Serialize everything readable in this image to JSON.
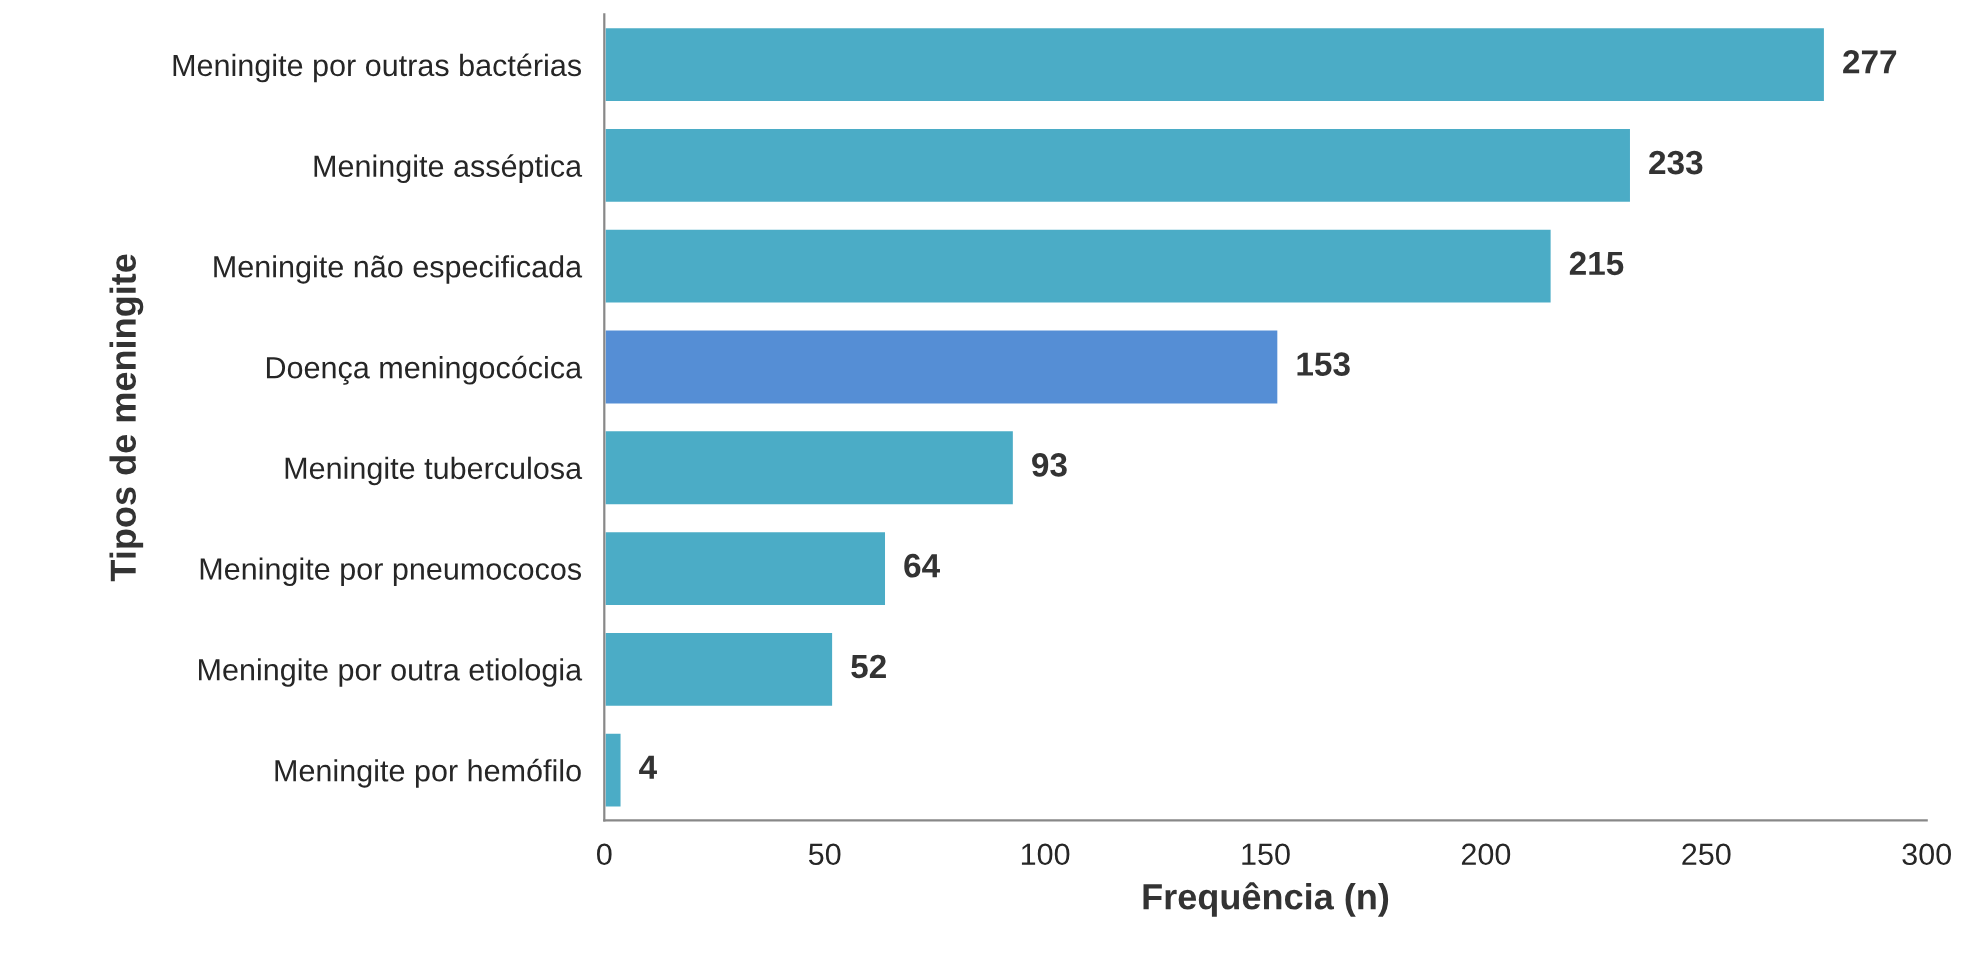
{
  "chart_data": {
    "type": "bar",
    "orientation": "horizontal",
    "categories": [
      "Meningite por outras bactérias",
      "Meningite asséptica",
      "Meningite não especificada",
      "Doença meningocócica",
      "Meningite tuberculosa",
      "Meningite por pneumococos",
      "Meningite por outra etiologia",
      "Meningite por hemófilo"
    ],
    "values": [
      277,
      233,
      215,
      153,
      93,
      64,
      52,
      4
    ],
    "colors": [
      "#4bacc6",
      "#4bacc6",
      "#4bacc6",
      "#558ed5",
      "#4bacc6",
      "#4bacc6",
      "#4bacc6",
      "#4bacc6"
    ],
    "xlabel": "Frequência (n)",
    "ylabel": "Tipos de meningite",
    "xlim": [
      0,
      300
    ],
    "xticks": [
      0,
      50,
      100,
      150,
      200,
      250,
      300
    ],
    "data_labels": true,
    "grid": false,
    "legend": false
  }
}
